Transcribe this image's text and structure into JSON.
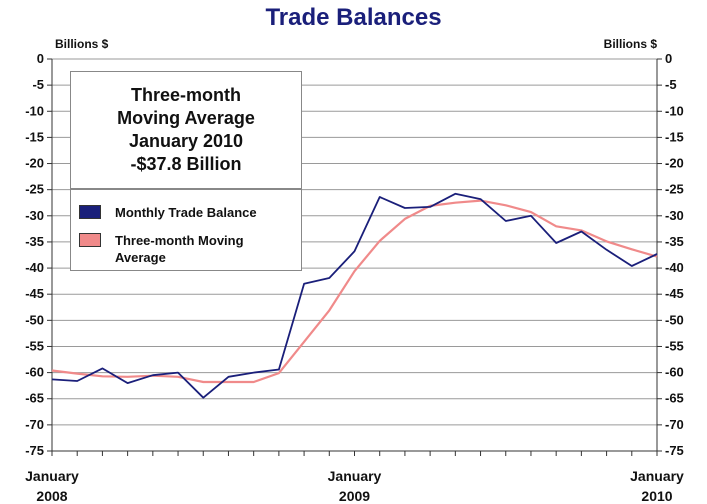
{
  "chart_data": {
    "type": "line",
    "title": "Trade Balances",
    "ylabel_left": "Billions $",
    "ylabel_right": "Billions $",
    "ylim": [
      -75,
      0
    ],
    "yticks": [
      "0",
      "-5",
      "-10",
      "-15",
      "-20",
      "-25",
      "-30",
      "-35",
      "-40",
      "-45",
      "-50",
      "-55",
      "-60",
      "-65",
      "-70",
      "-75"
    ],
    "x_labels": [
      {
        "month": "January",
        "year": "2008"
      },
      {
        "month": "January",
        "year": "2009"
      },
      {
        "month": "January",
        "year": "2010"
      }
    ],
    "months": [
      "2008-01",
      "2008-02",
      "2008-03",
      "2008-04",
      "2008-05",
      "2008-06",
      "2008-07",
      "2008-08",
      "2008-09",
      "2008-10",
      "2008-11",
      "2008-12",
      "2009-01",
      "2009-02",
      "2009-03",
      "2009-04",
      "2009-05",
      "2009-06",
      "2009-07",
      "2009-08",
      "2009-09",
      "2009-10",
      "2009-11",
      "2009-12",
      "2010-01"
    ],
    "series": [
      {
        "name": "Monthly Trade Balance",
        "color": "#1a1f7a",
        "values": [
          -61.3,
          -61.6,
          -59.2,
          -62.0,
          -60.5,
          -60.0,
          -64.8,
          -60.8,
          -60.0,
          -59.4,
          -43.0,
          -41.9,
          -36.8,
          -26.4,
          -28.5,
          -28.3,
          -25.8,
          -26.8,
          -31.0,
          -30.0,
          -35.2,
          -33.0,
          -36.5,
          -39.6,
          -37.3
        ]
      },
      {
        "name": "Three-month Moving Average",
        "color": "#f08a8a",
        "values": [
          -59.6,
          -60.2,
          -60.7,
          -60.8,
          -60.6,
          -60.8,
          -61.8,
          -61.8,
          -61.8,
          -60.1,
          -54.1,
          -48.1,
          -40.6,
          -34.8,
          -30.6,
          -28.1,
          -27.5,
          -27.1,
          -28.0,
          -29.3,
          -32.0,
          -32.8,
          -34.9,
          -36.4,
          -37.8
        ]
      }
    ],
    "annotation": [
      "Three-month",
      "Moving Average",
      "January 2010",
      "-$37.8 Billion"
    ],
    "grid": true,
    "legend_position": "upper-left"
  }
}
